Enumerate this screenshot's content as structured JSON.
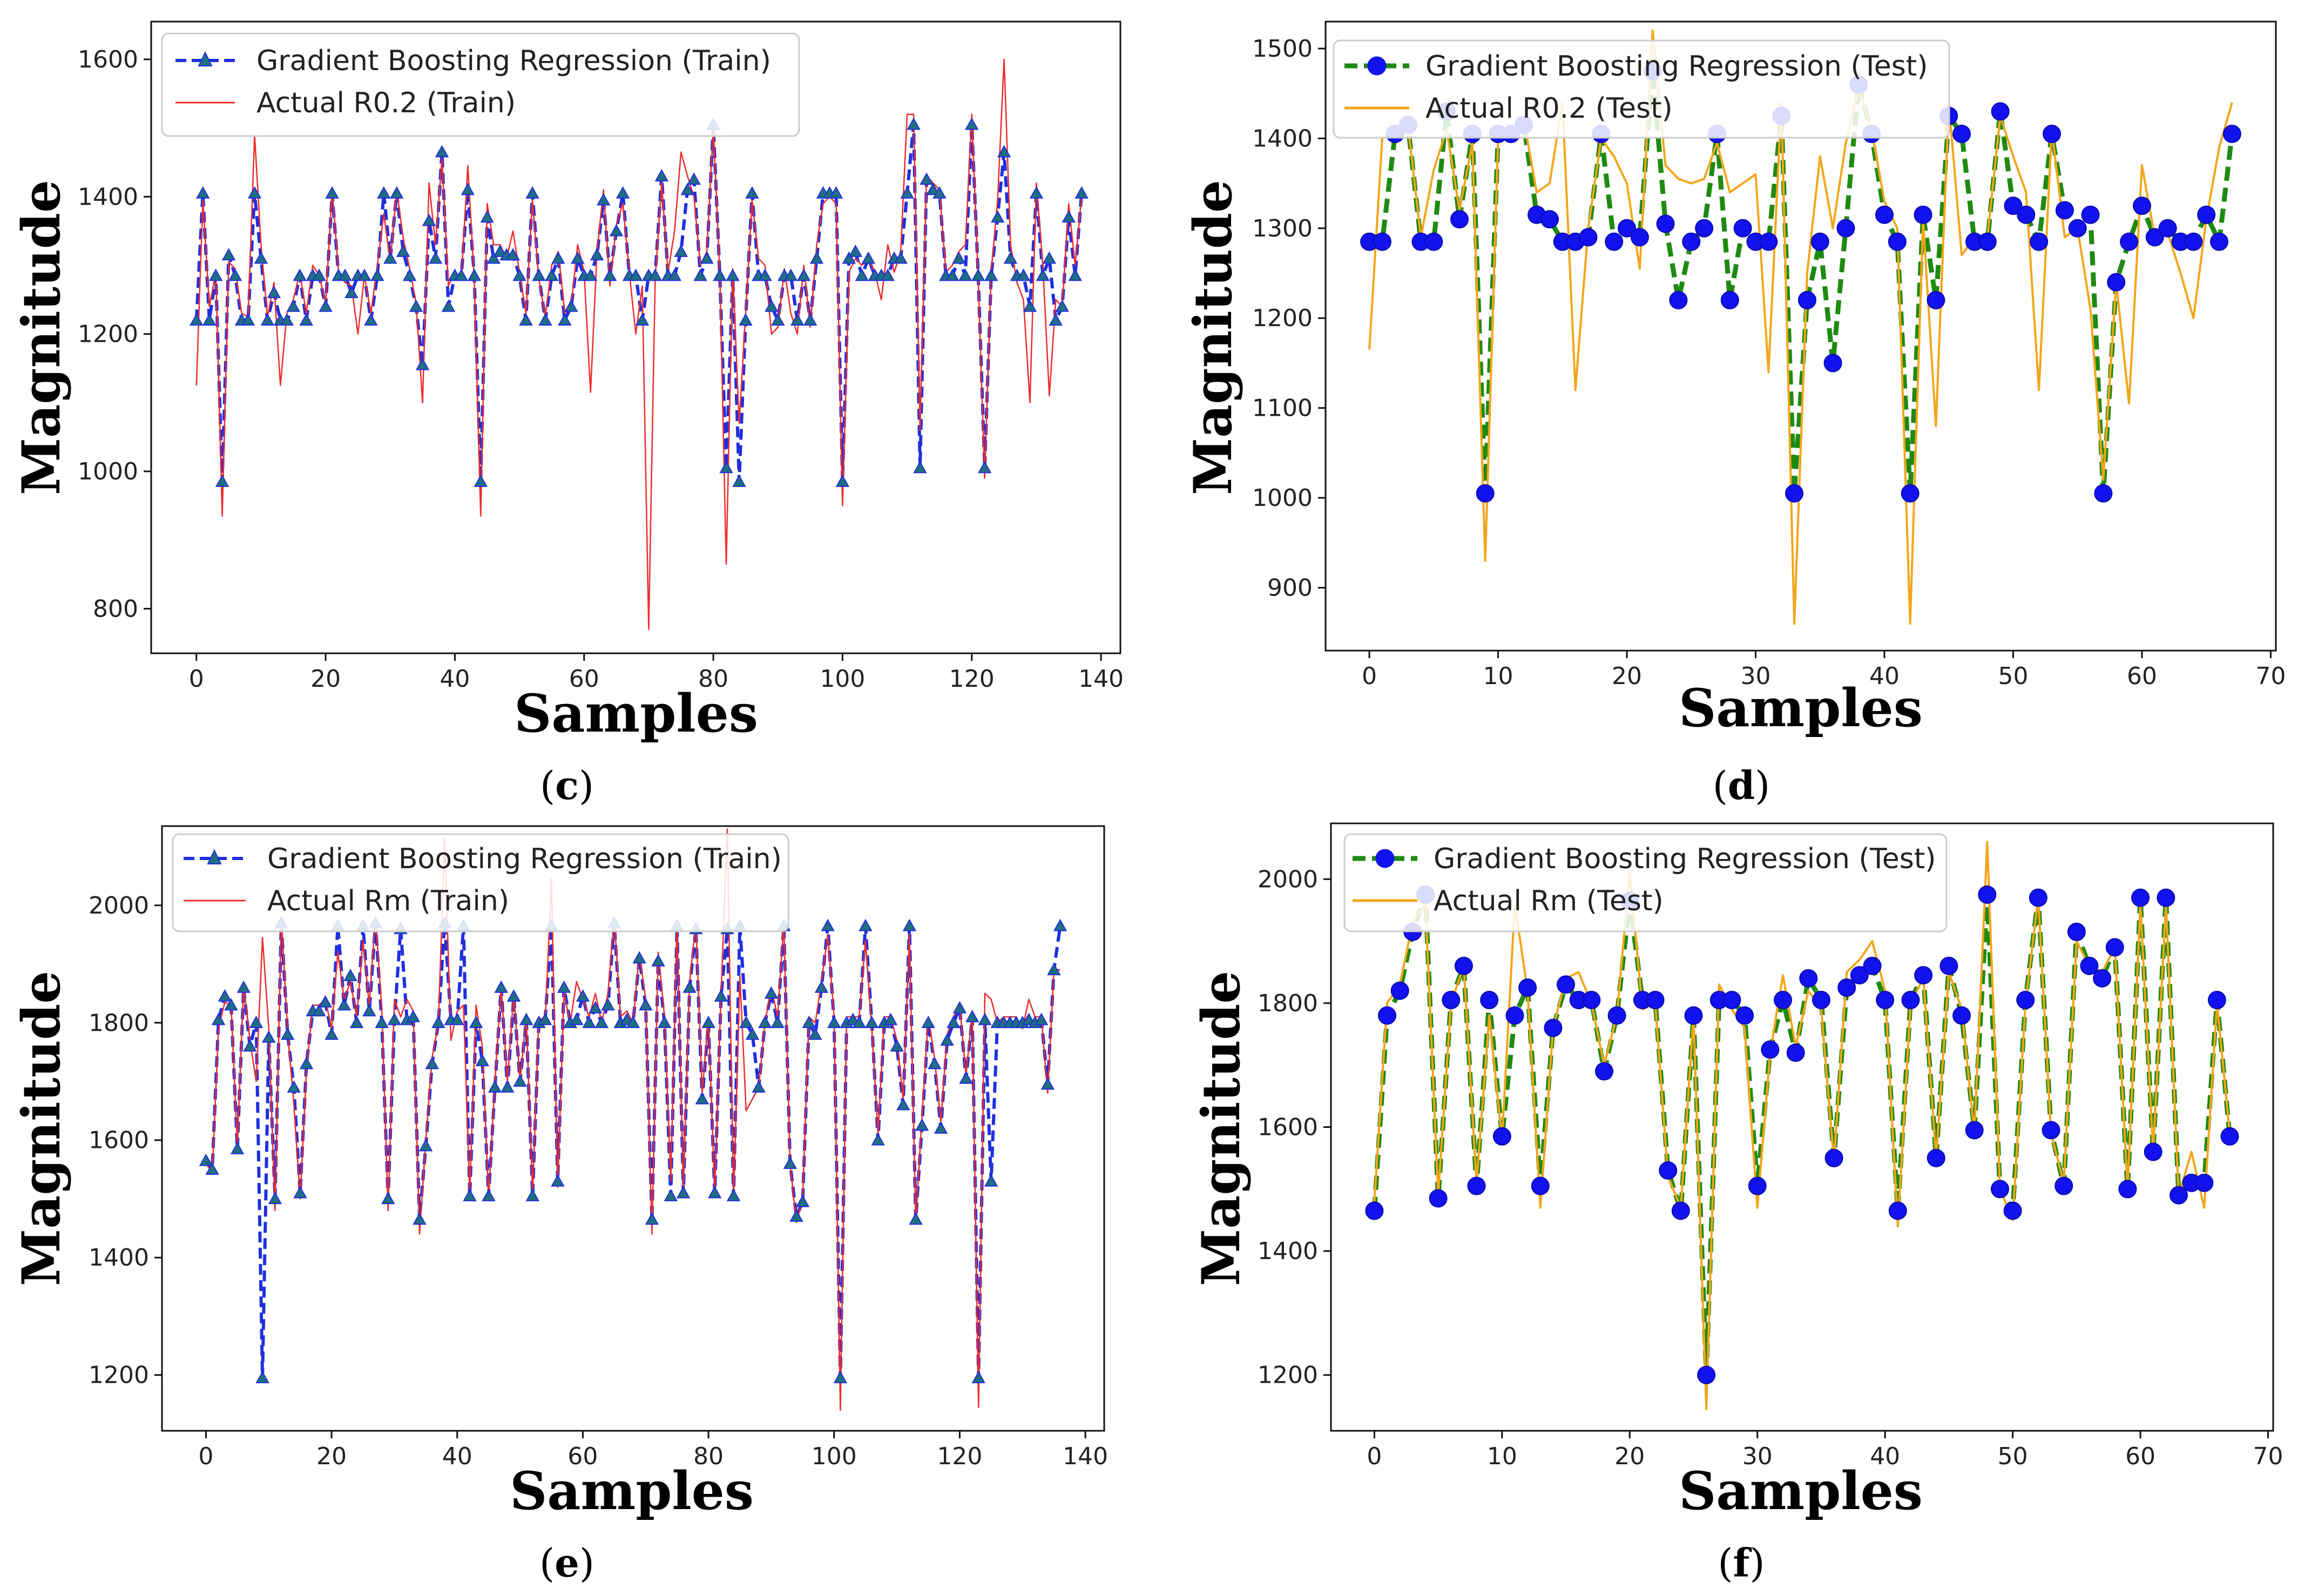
{
  "chart_data": [
    {
      "panel": "c",
      "type": "line",
      "xlabel": "Samples",
      "ylabel": "Magnitude",
      "xlim": [
        -7,
        143
      ],
      "ylim": [
        735,
        1655
      ],
      "xticks": [
        0,
        20,
        40,
        60,
        80,
        100,
        120,
        140
      ],
      "yticks": [
        800,
        1000,
        1200,
        1400,
        1600
      ],
      "legend_position": "top-left",
      "series": [
        {
          "name": "Gradient Boosting Regression (Train)",
          "style": "dashed-triangle",
          "color": "#1f2fe0",
          "marker_color": "#1f6f7f",
          "values": [
            1220,
            1405,
            1220,
            1285,
            985,
            1315,
            1285,
            1220,
            1220,
            1405,
            1310,
            1220,
            1260,
            1220,
            1220,
            1240,
            1285,
            1220,
            1285,
            1285,
            1240,
            1405,
            1285,
            1285,
            1260,
            1285,
            1285,
            1220,
            1285,
            1405,
            1310,
            1405,
            1320,
            1285,
            1240,
            1155,
            1365,
            1310,
            1465,
            1240,
            1285,
            1285,
            1410,
            1285,
            985,
            1370,
            1310,
            1320,
            1315,
            1315,
            1285,
            1220,
            1405,
            1285,
            1220,
            1285,
            1310,
            1220,
            1240,
            1310,
            1285,
            1285,
            1315,
            1395,
            1285,
            1350,
            1405,
            1285,
            1285,
            1220,
            1285,
            1285,
            1430,
            1285,
            1285,
            1320,
            1410,
            1425,
            1285,
            1310,
            1505,
            1285,
            1005,
            1285,
            985,
            1220,
            1405,
            1285,
            1285,
            1240,
            1220,
            1285,
            1285,
            1220,
            1285,
            1220,
            1310,
            1405,
            1405,
            1405,
            985,
            1310,
            1320,
            1285,
            1310,
            1285,
            1285,
            1285,
            1310,
            1310,
            1405,
            1505,
            1005,
            1425,
            1410,
            1405,
            1285,
            1285,
            1310,
            1285,
            1505,
            1285,
            1005,
            1285,
            1370,
            1465,
            1310,
            1285,
            1285,
            1240,
            1405,
            1285,
            1310,
            1220,
            1240,
            1370,
            1285,
            1405
          ]
        },
        {
          "name": "Actual R0.2 (Train)",
          "style": "solid",
          "color": "#ee2b2b",
          "values": [
            1125,
            1395,
            1240,
            1290,
            935,
            1305,
            1295,
            1230,
            1225,
            1490,
            1330,
            1225,
            1275,
            1125,
            1230,
            1250,
            1290,
            1230,
            1300,
            1285,
            1245,
            1410,
            1290,
            1275,
            1270,
            1200,
            1285,
            1230,
            1300,
            1375,
            1305,
            1410,
            1340,
            1295,
            1245,
            1100,
            1420,
            1330,
            1455,
            1270,
            1290,
            1280,
            1445,
            1280,
            935,
            1390,
            1330,
            1330,
            1310,
            1350,
            1290,
            1230,
            1395,
            1280,
            1225,
            1300,
            1320,
            1230,
            1240,
            1330,
            1290,
            1115,
            1320,
            1410,
            1270,
            1360,
            1390,
            1290,
            1200,
            1270,
            770,
            1280,
            1420,
            1290,
            1350,
            1465,
            1430,
            1400,
            1300,
            1320,
            1500,
            1290,
            865,
            1295,
            1070,
            1230,
            1395,
            1310,
            1300,
            1200,
            1210,
            1295,
            1230,
            1200,
            1300,
            1210,
            1330,
            1390,
            1400,
            1390,
            950,
            1290,
            1310,
            1300,
            1310,
            1290,
            1250,
            1330,
            1290,
            1320,
            1520,
            1520,
            1060,
            1430,
            1420,
            1410,
            1290,
            1300,
            1320,
            1330,
            1520,
            1280,
            990,
            1290,
            1395,
            1600,
            1330,
            1275,
            1250,
            1100,
            1420,
            1300,
            1110,
            1250,
            1240,
            1390,
            1300,
            1400
          ]
        }
      ]
    },
    {
      "panel": "d",
      "type": "line",
      "xlabel": "Samples",
      "ylabel": "Magnitude",
      "xlim": [
        -3.4,
        70.4
      ],
      "ylim": [
        830,
        1530
      ],
      "xticks": [
        0,
        10,
        20,
        30,
        40,
        50,
        60,
        70
      ],
      "yticks": [
        900,
        1000,
        1100,
        1200,
        1300,
        1400,
        1500
      ],
      "legend_position": "top-left",
      "series": [
        {
          "name": "Gradient Boosting Regression (Test)",
          "style": "dashed-circle",
          "color": "#1f8a12",
          "marker_color": "#1212ee",
          "values": [
            1285,
            1285,
            1405,
            1415,
            1285,
            1285,
            1430,
            1310,
            1405,
            1005,
            1405,
            1405,
            1415,
            1315,
            1310,
            1285,
            1285,
            1290,
            1405,
            1285,
            1300,
            1290,
            1475,
            1305,
            1220,
            1285,
            1300,
            1405,
            1220,
            1300,
            1285,
            1285,
            1425,
            1005,
            1220,
            1285,
            1150,
            1300,
            1460,
            1405,
            1315,
            1285,
            1005,
            1315,
            1220,
            1425,
            1405,
            1285,
            1285,
            1430,
            1325,
            1315,
            1285,
            1405,
            1320,
            1300,
            1315,
            1005,
            1240,
            1285,
            1325,
            1290,
            1300,
            1285,
            1285,
            1315,
            1285,
            1405
          ]
        },
        {
          "name": "Actual R0.2 (Test)",
          "style": "solid",
          "color": "#f3a51a",
          "values": [
            1165,
            1400,
            1410,
            1415,
            1290,
            1365,
            1410,
            1320,
            1395,
            930,
            1400,
            1410,
            1420,
            1340,
            1350,
            1440,
            1120,
            1300,
            1400,
            1380,
            1350,
            1255,
            1520,
            1370,
            1355,
            1350,
            1355,
            1395,
            1340,
            1350,
            1360,
            1140,
            1440,
            860,
            1250,
            1380,
            1300,
            1395,
            1455,
            1410,
            1330,
            1300,
            860,
            1310,
            1080,
            1440,
            1270,
            1290,
            1290,
            1425,
            1380,
            1340,
            1120,
            1410,
            1290,
            1300,
            1210,
            1020,
            1240,
            1105,
            1370,
            1290,
            1295,
            1250,
            1200,
            1310,
            1390,
            1440
          ]
        }
      ]
    },
    {
      "panel": "e",
      "type": "line",
      "xlabel": "Samples",
      "ylabel": "Magnitude",
      "xlim": [
        -7,
        143
      ],
      "ylim": [
        1105,
        2135
      ],
      "xticks": [
        0,
        20,
        40,
        60,
        80,
        100,
        120,
        140
      ],
      "yticks": [
        1200,
        1400,
        1600,
        1800,
        2000
      ],
      "legend_position": "top-left",
      "series": [
        {
          "name": "Gradient Boosting Regression (Train)",
          "style": "dashed-triangle",
          "color": "#1f2fe0",
          "marker_color": "#1f6f7f",
          "values": [
            1565,
            1550,
            1805,
            1845,
            1830,
            1585,
            1860,
            1760,
            1800,
            1195,
            1775,
            1500,
            1970,
            1780,
            1690,
            1510,
            1730,
            1820,
            1820,
            1835,
            1780,
            1965,
            1830,
            1880,
            1800,
            1965,
            1820,
            1970,
            1800,
            1500,
            1805,
            1960,
            1805,
            1810,
            1465,
            1590,
            1730,
            1800,
            1970,
            1805,
            1805,
            1965,
            1505,
            1800,
            1735,
            1505,
            1690,
            1860,
            1690,
            1845,
            1700,
            1805,
            1505,
            1800,
            1805,
            1965,
            1530,
            1860,
            1800,
            1805,
            1845,
            1800,
            1825,
            1800,
            1830,
            1970,
            1800,
            1805,
            1800,
            1910,
            1830,
            1465,
            1905,
            1800,
            1505,
            1965,
            1510,
            1860,
            1960,
            1670,
            1800,
            1510,
            1845,
            1960,
            1505,
            1965,
            1800,
            1780,
            1690,
            1800,
            1850,
            1800,
            1965,
            1560,
            1470,
            1495,
            1800,
            1780,
            1860,
            1965,
            1800,
            1195,
            1800,
            1805,
            1800,
            1965,
            1800,
            1600,
            1800,
            1805,
            1760,
            1660,
            1965,
            1465,
            1625,
            1800,
            1730,
            1620,
            1770,
            1800,
            1825,
            1705,
            1810,
            1195,
            1805,
            1530,
            1800,
            1800,
            1800,
            1800,
            1800,
            1805,
            1800,
            1805,
            1695,
            1890,
            1965
          ]
        },
        {
          "name": "Actual Rm (Train)",
          "style": "solid",
          "color": "#ee2b2b",
          "values": [
            1560,
            1545,
            1790,
            1835,
            1830,
            1590,
            1865,
            1770,
            1700,
            1945,
            1790,
            1480,
            1980,
            1785,
            1660,
            1500,
            1720,
            1830,
            1830,
            1840,
            1790,
            1920,
            1840,
            1870,
            1810,
            1940,
            1830,
            1980,
            1820,
            1480,
            1840,
            1810,
            1840,
            1820,
            1440,
            1600,
            1740,
            1800,
            2115,
            1770,
            1820,
            1830,
            1510,
            1830,
            1760,
            1500,
            1700,
            1860,
            1700,
            1850,
            1700,
            1810,
            1510,
            1810,
            1800,
            2045,
            1520,
            1850,
            1800,
            1870,
            1840,
            1810,
            1850,
            1800,
            1850,
            1980,
            1810,
            1820,
            1800,
            1920,
            1840,
            1440,
            1920,
            1810,
            1530,
            1970,
            1520,
            1870,
            1970,
            1680,
            1810,
            1510,
            1850,
            2130,
            1500,
            1880,
            1650,
            1670,
            1690,
            1800,
            1860,
            1810,
            1970,
            1560,
            1460,
            1500,
            1810,
            1800,
            1870,
            1950,
            1810,
            1140,
            1810,
            1810,
            1810,
            1940,
            1790,
            1610,
            1810,
            1810,
            1770,
            1670,
            1950,
            1460,
            1640,
            1810,
            1740,
            1630,
            1780,
            1810,
            1830,
            1710,
            1820,
            1145,
            1850,
            1840,
            1800,
            1810,
            1810,
            1810,
            1790,
            1840,
            1810,
            1810,
            1680,
            1890,
            1890
          ]
        }
      ]
    },
    {
      "panel": "f",
      "type": "line",
      "xlabel": "Samples",
      "ylabel": "Magnitude",
      "xlim": [
        -3.4,
        70.4
      ],
      "ylim": [
        1110,
        2090
      ],
      "xticks": [
        0,
        10,
        20,
        30,
        40,
        50,
        60,
        70
      ],
      "yticks": [
        1200,
        1400,
        1600,
        1800,
        2000
      ],
      "legend_position": "top-left",
      "series": [
        {
          "name": "Gradient Boosting Regression (Test)",
          "style": "dashed-circle",
          "color": "#1f8a12",
          "marker_color": "#1212ee",
          "values": [
            1465,
            1780,
            1820,
            1915,
            1975,
            1485,
            1805,
            1860,
            1505,
            1805,
            1585,
            1780,
            1825,
            1505,
            1760,
            1830,
            1805,
            1805,
            1690,
            1780,
            1965,
            1805,
            1805,
            1530,
            1465,
            1780,
            1200,
            1805,
            1805,
            1780,
            1505,
            1725,
            1805,
            1720,
            1840,
            1805,
            1550,
            1825,
            1845,
            1860,
            1805,
            1465,
            1805,
            1845,
            1550,
            1860,
            1780,
            1595,
            1975,
            1500,
            1465,
            1805,
            1970,
            1595,
            1505,
            1915,
            1860,
            1840,
            1890,
            1500,
            1970,
            1560,
            1970,
            1490,
            1510,
            1510,
            1805,
            1585
          ]
        },
        {
          "name": "Actual Rm (Test)",
          "style": "solid",
          "color": "#f3a51a",
          "values": [
            1480,
            1800,
            1830,
            1930,
            1960,
            1490,
            1800,
            1860,
            1510,
            1780,
            1580,
            1960,
            1820,
            1470,
            1760,
            1840,
            1850,
            1800,
            1700,
            1780,
            2010,
            1790,
            1800,
            1520,
            1470,
            1780,
            1145,
            1830,
            1790,
            1760,
            1470,
            1720,
            1845,
            1730,
            1820,
            1790,
            1545,
            1850,
            1870,
            1900,
            1820,
            1440,
            1800,
            1840,
            1550,
            1850,
            1790,
            1590,
            2060,
            1500,
            1450,
            1800,
            1970,
            1590,
            1510,
            1900,
            1860,
            1850,
            1890,
            1500,
            1960,
            1560,
            1960,
            1490,
            1560,
            1470,
            1800,
            1590
          ]
        }
      ]
    }
  ],
  "panel_labels": [
    {
      "open": "(",
      "letter": "c",
      "close": ")"
    },
    {
      "open": "(",
      "letter": "d",
      "close": ")"
    },
    {
      "open": "(",
      "letter": "e",
      "close": ")"
    },
    {
      "open": "(",
      "letter": "f",
      "close": ")"
    }
  ]
}
